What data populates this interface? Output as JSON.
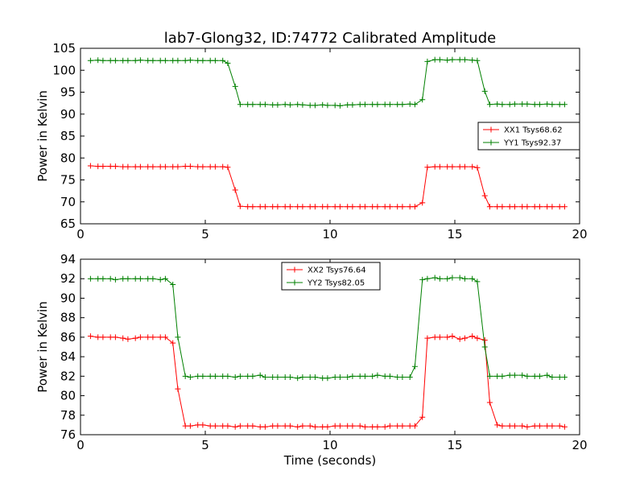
{
  "chart_data": [
    {
      "type": "line",
      "title": "lab7-Glong32, ID:74772 Calibrated Amplitude",
      "xlabel": "",
      "ylabel": "Power in Kelvin",
      "xlim": [
        0,
        20
      ],
      "ylim": [
        65,
        105
      ],
      "xticks": [
        "0",
        "5",
        "10",
        "15",
        "20"
      ],
      "yticks": [
        "65",
        "70",
        "75",
        "80",
        "85",
        "90",
        "95",
        "100",
        "105"
      ],
      "legend_position": "center-right",
      "x": [
        0.4,
        0.7,
        0.9,
        1.2,
        1.4,
        1.7,
        1.9,
        2.2,
        2.4,
        2.7,
        2.9,
        3.2,
        3.4,
        3.7,
        3.9,
        4.2,
        4.4,
        4.7,
        4.9,
        5.2,
        5.4,
        5.7,
        5.9,
        6.2,
        6.4,
        6.7,
        6.9,
        7.2,
        7.4,
        7.7,
        7.9,
        8.2,
        8.4,
        8.7,
        8.9,
        9.2,
        9.4,
        9.7,
        9.9,
        10.2,
        10.4,
        10.7,
        10.9,
        11.2,
        11.4,
        11.7,
        11.9,
        12.2,
        12.4,
        12.7,
        12.9,
        13.2,
        13.4,
        13.7,
        13.9,
        14.2,
        14.4,
        14.7,
        14.9,
        15.2,
        15.4,
        15.7,
        15.9,
        16.2,
        16.4,
        16.7,
        16.9,
        17.2,
        17.4,
        17.7,
        17.9,
        18.2,
        18.4,
        18.7,
        18.9,
        19.2,
        19.4
      ],
      "series": [
        {
          "name": "XX1 Tsys68.62",
          "color": "#ff0000",
          "values": [
            78.2,
            78.1,
            78.1,
            78.1,
            78.1,
            78.0,
            78.0,
            78.0,
            78.0,
            78.0,
            78.0,
            78.0,
            78.0,
            78.0,
            78.0,
            78.1,
            78.1,
            78.0,
            78.0,
            78.0,
            78.0,
            78.0,
            77.9,
            72.7,
            69.0,
            68.9,
            68.9,
            68.9,
            68.9,
            68.9,
            68.9,
            68.9,
            68.9,
            68.9,
            68.9,
            68.9,
            68.9,
            68.9,
            68.9,
            68.9,
            68.9,
            68.9,
            68.9,
            68.9,
            68.9,
            68.9,
            68.9,
            68.9,
            68.9,
            68.9,
            68.9,
            68.9,
            68.9,
            69.8,
            77.9,
            78.0,
            78.0,
            78.0,
            78.0,
            78.0,
            78.0,
            78.0,
            77.8,
            71.4,
            68.9,
            68.9,
            68.9,
            68.9,
            68.9,
            68.9,
            68.9,
            68.9,
            68.9,
            68.9,
            68.9,
            68.9,
            68.9
          ]
        },
        {
          "name": "YY1 Tsys92.37",
          "color": "#008000",
          "values": [
            102.2,
            102.3,
            102.2,
            102.2,
            102.2,
            102.2,
            102.2,
            102.2,
            102.3,
            102.2,
            102.2,
            102.2,
            102.2,
            102.2,
            102.2,
            102.2,
            102.3,
            102.2,
            102.2,
            102.2,
            102.2,
            102.2,
            101.6,
            96.3,
            92.2,
            92.2,
            92.2,
            92.2,
            92.2,
            92.1,
            92.1,
            92.2,
            92.1,
            92.2,
            92.1,
            92.0,
            92.0,
            92.1,
            92.0,
            92.0,
            91.9,
            92.1,
            92.1,
            92.2,
            92.2,
            92.2,
            92.2,
            92.2,
            92.2,
            92.2,
            92.2,
            92.3,
            92.2,
            93.3,
            102.0,
            102.4,
            102.4,
            102.3,
            102.4,
            102.4,
            102.4,
            102.3,
            102.2,
            95.2,
            92.2,
            92.3,
            92.2,
            92.2,
            92.3,
            92.3,
            92.3,
            92.2,
            92.2,
            92.3,
            92.2,
            92.2,
            92.2
          ]
        }
      ]
    },
    {
      "type": "line",
      "title": "",
      "xlabel": "Time (seconds)",
      "ylabel": "Power in Kelvin",
      "xlim": [
        0,
        20
      ],
      "ylim": [
        76,
        94
      ],
      "xticks": [
        "0",
        "5",
        "10",
        "15",
        "20"
      ],
      "yticks": [
        "76",
        "78",
        "80",
        "82",
        "84",
        "86",
        "88",
        "90",
        "92",
        "94"
      ],
      "legend_position": "top-center",
      "x": [
        0.4,
        0.7,
        0.9,
        1.2,
        1.4,
        1.7,
        1.9,
        2.2,
        2.4,
        2.7,
        2.9,
        3.2,
        3.4,
        3.7,
        3.9,
        4.2,
        4.4,
        4.7,
        4.9,
        5.2,
        5.4,
        5.7,
        5.9,
        6.2,
        6.4,
        6.7,
        6.9,
        7.2,
        7.4,
        7.7,
        7.9,
        8.2,
        8.4,
        8.7,
        8.9,
        9.2,
        9.4,
        9.7,
        9.9,
        10.2,
        10.4,
        10.7,
        10.9,
        11.2,
        11.4,
        11.7,
        11.9,
        12.2,
        12.4,
        12.7,
        12.9,
        13.2,
        13.4,
        13.7,
        13.9,
        14.2,
        14.4,
        14.7,
        14.9,
        15.2,
        15.4,
        15.7,
        15.9,
        16.2,
        16.4,
        16.7,
        16.9,
        17.2,
        17.4,
        17.7,
        17.9,
        18.2,
        18.4,
        18.7,
        18.9,
        19.2,
        19.4
      ],
      "series": [
        {
          "name": "XX2 Tsys76.64",
          "color": "#ff0000",
          "values": [
            86.1,
            86.0,
            86.0,
            86.0,
            86.0,
            85.9,
            85.8,
            85.9,
            86.0,
            86.0,
            86.0,
            86.0,
            86.0,
            85.4,
            80.7,
            76.9,
            76.9,
            77.0,
            77.0,
            76.9,
            76.9,
            76.9,
            76.9,
            76.8,
            76.9,
            76.9,
            76.9,
            76.8,
            76.8,
            76.9,
            76.9,
            76.9,
            76.9,
            76.8,
            76.9,
            76.9,
            76.8,
            76.8,
            76.8,
            76.9,
            76.9,
            76.9,
            76.9,
            76.9,
            76.8,
            76.8,
            76.8,
            76.8,
            76.9,
            76.9,
            76.9,
            76.9,
            76.9,
            77.8,
            85.9,
            86.0,
            86.0,
            86.0,
            86.1,
            85.8,
            85.9,
            86.1,
            85.9,
            85.7,
            79.3,
            77.0,
            76.9,
            76.9,
            76.9,
            76.9,
            76.8,
            76.9,
            76.9,
            76.9,
            76.9,
            76.9,
            76.8
          ]
        },
        {
          "name": "YY2 Tsys82.05",
          "color": "#008000",
          "values": [
            92.0,
            92.0,
            92.0,
            92.0,
            91.9,
            92.0,
            92.0,
            92.0,
            92.0,
            92.0,
            92.0,
            91.9,
            92.0,
            91.4,
            86.0,
            82.0,
            81.9,
            82.0,
            82.0,
            82.0,
            82.0,
            82.0,
            82.0,
            81.9,
            82.0,
            82.0,
            82.0,
            82.1,
            81.9,
            81.9,
            81.9,
            81.9,
            81.9,
            81.8,
            81.9,
            81.9,
            81.9,
            81.8,
            81.8,
            81.9,
            81.9,
            81.9,
            82.0,
            82.0,
            82.0,
            82.0,
            82.1,
            82.0,
            82.0,
            81.9,
            81.9,
            81.9,
            83.0,
            91.9,
            92.0,
            92.1,
            92.0,
            92.0,
            92.1,
            92.1,
            92.0,
            92.0,
            91.7,
            85.0,
            82.0,
            82.0,
            82.0,
            82.1,
            82.1,
            82.1,
            82.0,
            82.0,
            82.0,
            82.1,
            81.9,
            81.9,
            81.9
          ]
        }
      ]
    }
  ]
}
